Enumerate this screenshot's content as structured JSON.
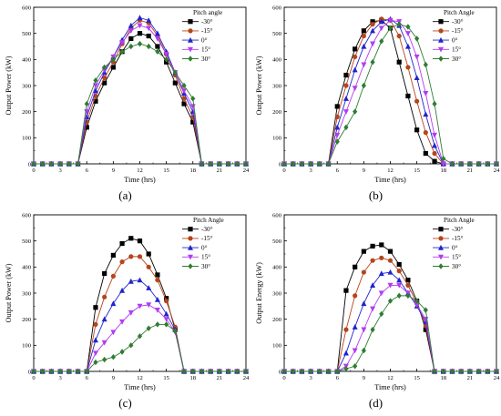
{
  "colors": {
    "-30": "#000000",
    "-15": "#b5451b",
    "0": "#1f24cc",
    "15": "#b23cf0",
    "30": "#2e7d32"
  },
  "chart_data": [
    {
      "type": "line",
      "panel_label": "(a)",
      "xlabel": "Time (hrs)",
      "ylabel": "Output Power (kW)",
      "xlim": [
        0,
        24
      ],
      "ylim": [
        0,
        600
      ],
      "xticks": [
        "0",
        "3",
        "6",
        "9",
        "12",
        "15",
        "18",
        "21",
        "24"
      ],
      "yticks": [
        "0",
        "100",
        "200",
        "300",
        "400",
        "500",
        "600"
      ],
      "legend_title": "Pitch angle",
      "legend_position": "top-right",
      "x": [
        0,
        1,
        2,
        3,
        4,
        5,
        6,
        7,
        8,
        9,
        10,
        11,
        12,
        13,
        14,
        15,
        16,
        17,
        18,
        19,
        20,
        21,
        22,
        23,
        24
      ],
      "series": [
        {
          "name": "-30°",
          "key": "-30",
          "marker": "square",
          "values": [
            0,
            0,
            0,
            0,
            0,
            0,
            140,
            240,
            310,
            370,
            430,
            480,
            500,
            490,
            450,
            390,
            310,
            230,
            160,
            0,
            0,
            0,
            0,
            0,
            0
          ]
        },
        {
          "name": "-15°",
          "key": "-15",
          "marker": "circle",
          "values": [
            0,
            0,
            0,
            0,
            0,
            0,
            160,
            260,
            330,
            390,
            460,
            520,
            550,
            540,
            490,
            420,
            340,
            250,
            180,
            0,
            0,
            0,
            0,
            0,
            0
          ]
        },
        {
          "name": "0°",
          "key": "0",
          "marker": "triangle-up",
          "values": [
            0,
            0,
            0,
            0,
            0,
            0,
            180,
            280,
            350,
            410,
            475,
            530,
            560,
            550,
            500,
            430,
            350,
            270,
            200,
            0,
            0,
            0,
            0,
            0,
            0
          ]
        },
        {
          "name": "15°",
          "key": "15",
          "marker": "triangle-down",
          "values": [
            0,
            0,
            0,
            0,
            0,
            0,
            200,
            300,
            360,
            410,
            465,
            510,
            530,
            520,
            480,
            420,
            350,
            280,
            220,
            0,
            0,
            0,
            0,
            0,
            0
          ]
        },
        {
          "name": "30°",
          "key": "30",
          "marker": "diamond",
          "values": [
            0,
            0,
            0,
            0,
            0,
            0,
            230,
            320,
            370,
            400,
            430,
            450,
            460,
            450,
            430,
            400,
            350,
            300,
            250,
            0,
            0,
            0,
            0,
            0,
            0
          ]
        }
      ]
    },
    {
      "type": "line",
      "panel_label": "(b)",
      "xlabel": "Time (hrs)",
      "ylabel": "Output Power (kW)",
      "xlim": [
        0,
        24
      ],
      "ylim": [
        0,
        600
      ],
      "xticks": [
        "0",
        "3",
        "6",
        "9",
        "12",
        "15",
        "18",
        "21",
        "24"
      ],
      "yticks": [
        "0",
        "100",
        "200",
        "300",
        "400",
        "500",
        "600"
      ],
      "legend_title": "Pitch Angle",
      "legend_position": "top-right",
      "x": [
        0,
        1,
        2,
        3,
        4,
        5,
        6,
        7,
        8,
        9,
        10,
        11,
        12,
        13,
        14,
        15,
        16,
        17,
        18,
        19,
        20,
        21,
        22,
        23,
        24
      ],
      "series": [
        {
          "name": "-30°",
          "key": "-30",
          "marker": "square",
          "values": [
            0,
            0,
            0,
            0,
            0,
            0,
            220,
            340,
            440,
            510,
            545,
            550,
            520,
            390,
            260,
            130,
            40,
            10,
            0,
            0,
            0,
            0,
            0,
            0,
            0
          ]
        },
        {
          "name": "-15°",
          "key": "-15",
          "marker": "circle",
          "values": [
            0,
            0,
            0,
            0,
            0,
            0,
            180,
            300,
            410,
            490,
            535,
            555,
            550,
            490,
            370,
            240,
            120,
            40,
            0,
            0,
            0,
            0,
            0,
            0,
            0
          ]
        },
        {
          "name": "0°",
          "key": "0",
          "marker": "triangle-up",
          "values": [
            0,
            0,
            0,
            0,
            0,
            0,
            140,
            250,
            360,
            450,
            510,
            545,
            555,
            530,
            450,
            330,
            190,
            70,
            0,
            0,
            0,
            0,
            0,
            0,
            0
          ]
        },
        {
          "name": "15°",
          "key": "15",
          "marker": "triangle-down",
          "values": [
            0,
            0,
            0,
            0,
            0,
            0,
            110,
            200,
            290,
            380,
            460,
            520,
            550,
            545,
            500,
            410,
            270,
            110,
            0,
            0,
            0,
            0,
            0,
            0,
            0
          ]
        },
        {
          "name": "30°",
          "key": "30",
          "marker": "diamond",
          "values": [
            0,
            0,
            0,
            0,
            0,
            0,
            85,
            140,
            200,
            300,
            390,
            470,
            520,
            535,
            525,
            480,
            380,
            230,
            20,
            0,
            0,
            0,
            0,
            0,
            0
          ]
        }
      ]
    },
    {
      "type": "line",
      "panel_label": "(c)",
      "xlabel": "Time (hrs)",
      "ylabel": "Output Power (kW)",
      "xlim": [
        0,
        24
      ],
      "ylim": [
        0,
        600
      ],
      "xticks": [
        "0",
        "3",
        "6",
        "9",
        "12",
        "15",
        "18",
        "21",
        "24"
      ],
      "yticks": [
        "0",
        "100",
        "200",
        "300",
        "400",
        "500",
        "600"
      ],
      "legend_title": "Pitch Angle",
      "legend_position": "top-right",
      "x": [
        0,
        1,
        2,
        3,
        4,
        5,
        6,
        7,
        8,
        9,
        10,
        11,
        12,
        13,
        14,
        15,
        16,
        17,
        18,
        19,
        20,
        21,
        22,
        23,
        24
      ],
      "series": [
        {
          "name": "-30°",
          "key": "-30",
          "marker": "square",
          "values": [
            0,
            0,
            0,
            0,
            0,
            0,
            0,
            245,
            375,
            445,
            490,
            510,
            500,
            450,
            370,
            280,
            160,
            0,
            0,
            0,
            0,
            0,
            0,
            0,
            0
          ]
        },
        {
          "name": "-15°",
          "key": "-15",
          "marker": "circle",
          "values": [
            0,
            0,
            0,
            0,
            0,
            0,
            0,
            180,
            285,
            365,
            420,
            440,
            440,
            400,
            350,
            270,
            170,
            0,
            0,
            0,
            0,
            0,
            0,
            0,
            0
          ]
        },
        {
          "name": "0°",
          "key": "0",
          "marker": "triangle-up",
          "values": [
            0,
            0,
            0,
            0,
            0,
            0,
            0,
            120,
            200,
            260,
            310,
            345,
            350,
            320,
            275,
            220,
            160,
            0,
            0,
            0,
            0,
            0,
            0,
            0,
            0
          ]
        },
        {
          "name": "15°",
          "key": "15",
          "marker": "triangle-down",
          "values": [
            0,
            0,
            0,
            0,
            0,
            0,
            0,
            70,
            110,
            150,
            190,
            225,
            250,
            255,
            235,
            200,
            150,
            0,
            0,
            0,
            0,
            0,
            0,
            0,
            0
          ]
        },
        {
          "name": "30°",
          "key": "30",
          "marker": "diamond",
          "values": [
            0,
            0,
            0,
            0,
            0,
            0,
            0,
            35,
            45,
            55,
            75,
            100,
            135,
            165,
            180,
            180,
            155,
            0,
            0,
            0,
            0,
            0,
            0,
            0,
            0
          ]
        }
      ]
    },
    {
      "type": "line",
      "panel_label": "(d)",
      "xlabel": "Time (hrs)",
      "ylabel": "Output Energy (kW)",
      "xlim": [
        0,
        24
      ],
      "ylim": [
        0,
        600
      ],
      "xticks": [
        "0",
        "3",
        "6",
        "9",
        "12",
        "15",
        "18",
        "21",
        "24"
      ],
      "yticks": [
        "0",
        "100",
        "200",
        "300",
        "400",
        "500",
        "600"
      ],
      "legend_title": "Pitch Angle",
      "legend_position": "top-right",
      "x": [
        0,
        1,
        2,
        3,
        4,
        5,
        6,
        7,
        8,
        9,
        10,
        11,
        12,
        13,
        14,
        15,
        16,
        17,
        18,
        19,
        20,
        21,
        22,
        23,
        24
      ],
      "series": [
        {
          "name": "-30°",
          "key": "-30",
          "marker": "square",
          "values": [
            0,
            0,
            0,
            0,
            0,
            0,
            0,
            310,
            400,
            460,
            480,
            485,
            460,
            410,
            350,
            270,
            160,
            0,
            0,
            0,
            0,
            0,
            0,
            0,
            0
          ]
        },
        {
          "name": "-15°",
          "key": "-15",
          "marker": "circle",
          "values": [
            0,
            0,
            0,
            0,
            0,
            0,
            0,
            160,
            290,
            380,
            425,
            435,
            425,
            385,
            330,
            260,
            175,
            0,
            0,
            0,
            0,
            0,
            0,
            0,
            0
          ]
        },
        {
          "name": "0°",
          "key": "0",
          "marker": "triangle-up",
          "values": [
            0,
            0,
            0,
            0,
            0,
            0,
            0,
            70,
            170,
            260,
            330,
            375,
            380,
            350,
            300,
            250,
            190,
            0,
            0,
            0,
            0,
            0,
            0,
            0,
            0
          ]
        },
        {
          "name": "15°",
          "key": "15",
          "marker": "triangle-down",
          "values": [
            0,
            0,
            0,
            0,
            0,
            0,
            0,
            20,
            80,
            160,
            240,
            300,
            330,
            330,
            300,
            255,
            200,
            0,
            0,
            0,
            0,
            0,
            0,
            0,
            0
          ]
        },
        {
          "name": "30°",
          "key": "30",
          "marker": "diamond",
          "values": [
            0,
            0,
            0,
            0,
            0,
            0,
            0,
            10,
            20,
            80,
            160,
            220,
            270,
            290,
            290,
            270,
            235,
            0,
            0,
            0,
            0,
            0,
            0,
            0,
            0
          ]
        }
      ]
    }
  ]
}
